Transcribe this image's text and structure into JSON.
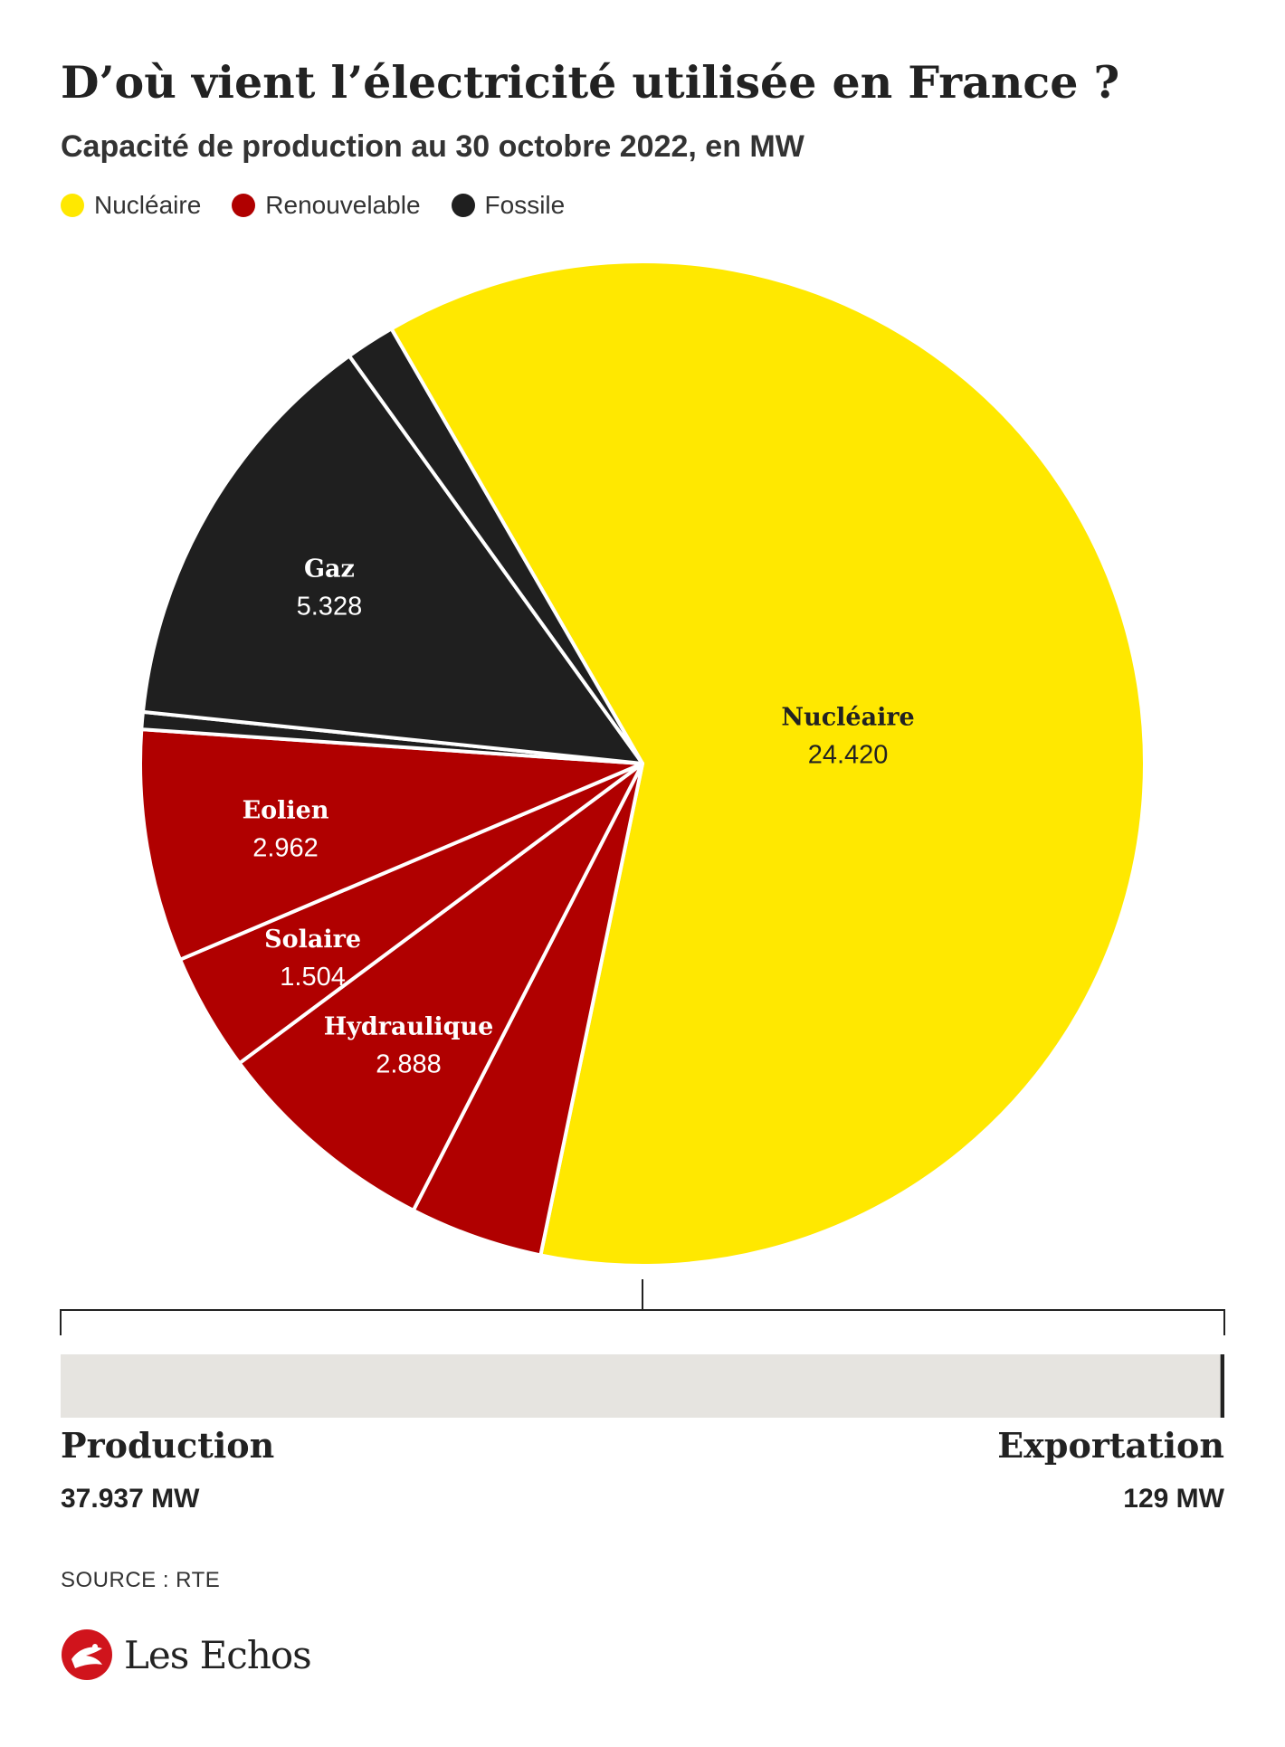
{
  "title": "D’où vient l’électricité utilisée en France ?",
  "subtitle": "Capacité de production au 30 octobre 2022, en MW",
  "legend": [
    {
      "label": "Nucléaire",
      "color": "#FFE800"
    },
    {
      "label": "Renouvelable",
      "color": "#B00000"
    },
    {
      "label": "Fossile",
      "color": "#1F1F1F"
    }
  ],
  "chart_data": {
    "type": "pie",
    "unit": "MW",
    "slices": [
      {
        "name": "Nucléaire",
        "label": "Nucléaire",
        "value_text": "24.420",
        "value": 24420,
        "category": "Nucléaire",
        "color": "#FFE800",
        "text_color": "#222222"
      },
      {
        "name": "",
        "label": "",
        "value_text": "",
        "value": 1700,
        "category": "Renouvelable",
        "color": "#B00000",
        "text_color": "#ffffff"
      },
      {
        "name": "Hydraulique",
        "label": "Hydraulique",
        "value_text": "2.888",
        "value": 2888,
        "category": "Renouvelable",
        "color": "#B00000",
        "text_color": "#ffffff"
      },
      {
        "name": "Solaire",
        "label": "Solaire",
        "value_text": "1.504",
        "value": 1504,
        "category": "Renouvelable",
        "color": "#B00000",
        "text_color": "#ffffff"
      },
      {
        "name": "Eolien",
        "label": "Eolien",
        "value_text": "2.962",
        "value": 2962,
        "category": "Renouvelable",
        "color": "#B00000",
        "text_color": "#ffffff"
      },
      {
        "name": "",
        "label": "",
        "value_text": "",
        "value": 220,
        "category": "Fossile",
        "color": "#1F1F1F",
        "text_color": "#ffffff"
      },
      {
        "name": "Gaz",
        "label": "Gaz",
        "value_text": "5.328",
        "value": 5328,
        "category": "Fossile",
        "color": "#1F1F1F",
        "text_color": "#ffffff"
      },
      {
        "name": "",
        "label": "",
        "value_text": "",
        "value": 630,
        "category": "Fossile",
        "color": "#1F1F1F",
        "text_color": "#ffffff"
      }
    ],
    "production_bar": {
      "production_label": "Production",
      "production_value": "37.937 MW",
      "export_label": "Exportation",
      "export_value": "129 MW",
      "production_mw": 37937,
      "export_mw": 129,
      "bar_color": "#E6E4E0",
      "marker_color": "#222222"
    }
  },
  "source": "SOURCE : RTE",
  "brand": {
    "name": "Les Echos",
    "logo_color": "#D0141C"
  }
}
